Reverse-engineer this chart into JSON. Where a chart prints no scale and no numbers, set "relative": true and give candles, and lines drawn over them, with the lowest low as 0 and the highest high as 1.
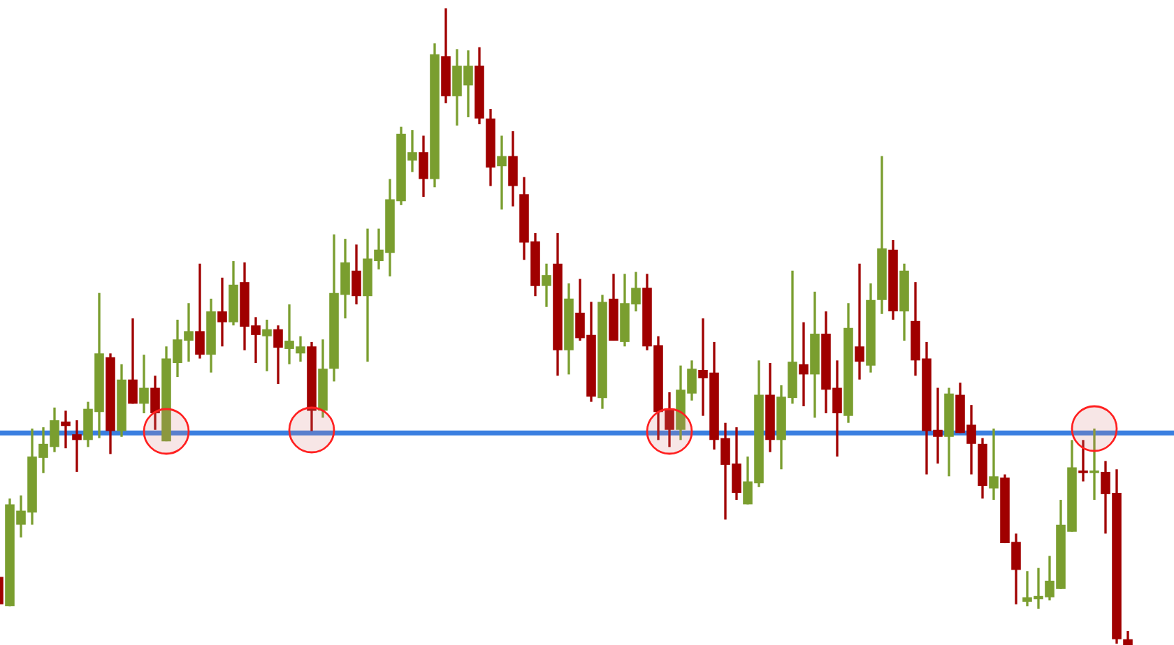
{
  "chart_data": {
    "type": "candlestick",
    "relative": true,
    "categories": [
      null,
      null,
      null,
      null,
      null,
      null,
      null,
      null,
      null,
      null,
      null,
      null,
      null,
      null,
      null,
      null,
      null,
      null,
      null,
      null,
      null,
      null,
      null,
      null,
      null,
      null,
      null,
      null,
      null,
      null,
      null,
      null,
      null,
      null,
      null,
      null,
      null,
      null,
      null,
      null,
      null,
      null,
      null,
      null,
      null,
      null,
      null,
      null,
      null,
      null,
      null,
      null,
      null,
      null,
      null,
      null,
      null,
      null,
      null,
      null,
      null,
      null,
      null,
      null,
      null,
      null,
      null,
      null,
      null,
      null,
      null,
      null,
      null,
      null,
      null,
      null,
      null,
      null,
      null,
      null,
      null,
      null,
      null,
      null,
      null,
      null,
      null,
      null,
      null,
      null,
      null,
      null,
      null,
      null,
      null,
      null,
      null,
      null,
      null,
      null,
      null,
      null
    ],
    "series": [
      {
        "colors": [
          "#a00000",
          "#7a9e2f",
          "#7a9e2f",
          "#7a9e2f",
          "#7a9e2f",
          "#7a9e2f",
          "#a00000",
          "#a00000",
          "#7a9e2f",
          "#7a9e2f",
          "#a00000",
          "#7a9e2f",
          "#a00000",
          "#7a9e2f",
          "#a00000",
          "#7a9e2f",
          "#7a9e2f",
          "#7a9e2f",
          "#a00000",
          "#7a9e2f",
          "#a00000",
          "#7a9e2f",
          "#a00000",
          "#a00000",
          "#7a9e2f",
          "#a00000",
          "#7a9e2f",
          "#7a9e2f",
          "#a00000",
          "#7a9e2f",
          "#7a9e2f",
          "#7a9e2f",
          "#a00000",
          "#7a9e2f",
          "#7a9e2f",
          "#7a9e2f",
          "#7a9e2f",
          "#7a9e2f",
          "#a00000",
          "#7a9e2f",
          "#a00000",
          "#7a9e2f",
          "#7a9e2f",
          "#a00000",
          "#a00000",
          "#7a9e2f",
          "#a00000",
          "#a00000",
          "#a00000",
          "#7a9e2f",
          "#a00000",
          "#7a9e2f",
          "#a00000",
          "#a00000",
          "#7a9e2f",
          "#a00000",
          "#7a9e2f",
          "#7a9e2f",
          "#a00000",
          "#a00000",
          "#a00000",
          "#7a9e2f",
          "#7a9e2f",
          "#a00000",
          "#a00000",
          "#a00000",
          "#a00000",
          "#7a9e2f",
          "#7a9e2f",
          "#a00000",
          "#7a9e2f",
          "#7a9e2f",
          "#a00000",
          "#7a9e2f",
          "#a00000",
          "#a00000",
          "#7a9e2f",
          "#a00000",
          "#7a9e2f",
          "#7a9e2f",
          "#a00000",
          "#7a9e2f",
          "#a00000",
          "#a00000",
          "#a00000",
          "#7a9e2f",
          "#a00000",
          "#a00000",
          "#a00000",
          "#7a9e2f",
          "#a00000",
          "#a00000",
          "#7a9e2f",
          "#7a9e2f",
          "#7a9e2f",
          "#7a9e2f",
          "#7a9e2f",
          "#a00000",
          "#7a9e2f",
          "#a00000",
          "#a00000",
          "#a00000"
        ],
        "ohlc": [
          [
            0.107,
            0.107,
            0.064,
            0.064
          ],
          [
            0.061,
            0.23,
            0.061,
            0.221
          ],
          [
            0.189,
            0.235,
            0.169,
            0.211
          ],
          [
            0.208,
            0.34,
            0.189,
            0.296
          ],
          [
            0.294,
            0.342,
            0.27,
            0.316
          ],
          [
            0.311,
            0.373,
            0.303,
            0.353
          ],
          [
            0.351,
            0.368,
            0.309,
            0.344
          ],
          [
            0.331,
            0.353,
            0.272,
            0.322
          ],
          [
            0.322,
            0.382,
            0.311,
            0.371
          ],
          [
            0.366,
            0.553,
            0.325,
            0.458
          ],
          [
            0.452,
            0.458,
            0.3,
            0.336
          ],
          [
            0.336,
            0.441,
            0.327,
            0.417
          ],
          [
            0.417,
            0.513,
            0.379,
            0.379
          ],
          [
            0.379,
            0.456,
            0.364,
            0.404
          ],
          [
            0.404,
            0.423,
            0.338,
            0.364
          ],
          [
            0.32,
            0.469,
            0.32,
            0.45
          ],
          [
            0.443,
            0.511,
            0.421,
            0.48
          ],
          [
            0.478,
            0.537,
            0.445,
            0.493
          ],
          [
            0.493,
            0.599,
            0.45,
            0.456
          ],
          [
            0.456,
            0.544,
            0.428,
            0.524
          ],
          [
            0.524,
            0.577,
            0.469,
            0.507
          ],
          [
            0.507,
            0.603,
            0.502,
            0.566
          ],
          [
            0.57,
            0.601,
            0.463,
            0.5
          ],
          [
            0.502,
            0.515,
            0.443,
            0.487
          ],
          [
            0.485,
            0.511,
            0.43,
            0.496
          ],
          [
            0.496,
            0.502,
            0.41,
            0.467
          ],
          [
            0.465,
            0.535,
            0.441,
            0.478
          ],
          [
            0.458,
            0.485,
            0.445,
            0.469
          ],
          [
            0.469,
            0.476,
            0.336,
            0.368
          ],
          [
            0.368,
            0.48,
            0.357,
            0.434
          ],
          [
            0.434,
            0.645,
            0.414,
            0.553
          ],
          [
            0.55,
            0.638,
            0.513,
            0.601
          ],
          [
            0.588,
            0.629,
            0.535,
            0.548
          ],
          [
            0.548,
            0.654,
            0.445,
            0.607
          ],
          [
            0.603,
            0.654,
            0.59,
            0.621
          ],
          [
            0.616,
            0.732,
            0.579,
            0.7
          ],
          [
            0.697,
            0.814,
            0.691,
            0.803
          ],
          [
            0.761,
            0.809,
            0.743,
            0.774
          ],
          [
            0.774,
            0.8,
            0.704,
            0.732
          ],
          [
            0.732,
            0.945,
            0.719,
            0.928
          ],
          [
            0.925,
            1,
            0.851,
            0.862
          ],
          [
            0.862,
            0.936,
            0.816,
            0.91
          ],
          [
            0.879,
            0.934,
            0.829,
            0.91
          ],
          [
            0.91,
            0.939,
            0.818,
            0.827
          ],
          [
            0.827,
            0.842,
            0.721,
            0.75
          ],
          [
            0.752,
            0.8,
            0.684,
            0.768
          ],
          [
            0.768,
            0.807,
            0.689,
            0.721
          ],
          [
            0.708,
            0.735,
            0.605,
            0.632
          ],
          [
            0.634,
            0.647,
            0.548,
            0.564
          ],
          [
            0.564,
            0.599,
            0.531,
            0.581
          ],
          [
            0.599,
            0.647,
            0.423,
            0.463
          ],
          [
            0.463,
            0.568,
            0.425,
            0.544
          ],
          [
            0.522,
            0.575,
            0.478,
            0.482
          ],
          [
            0.487,
            0.539,
            0.382,
            0.39
          ],
          [
            0.388,
            0.55,
            0.371,
            0.539
          ],
          [
            0.544,
            0.583,
            0.478,
            0.478
          ],
          [
            0.476,
            0.583,
            0.469,
            0.537
          ],
          [
            0.535,
            0.586,
            0.524,
            0.561
          ],
          [
            0.561,
            0.583,
            0.463,
            0.469
          ],
          [
            0.471,
            0.485,
            0.322,
            0.366
          ],
          [
            0.371,
            0.397,
            0.311,
            0.338
          ],
          [
            0.338,
            0.439,
            0.322,
            0.401
          ],
          [
            0.395,
            0.447,
            0.384,
            0.434
          ],
          [
            0.432,
            0.513,
            0.36,
            0.419
          ],
          [
            0.428,
            0.476,
            0.307,
            0.322
          ],
          [
            0.325,
            0.349,
            0.197,
            0.283
          ],
          [
            0.285,
            0.342,
            0.228,
            0.239
          ],
          [
            0.221,
            0.296,
            0.221,
            0.257
          ],
          [
            0.254,
            0.447,
            0.248,
            0.393
          ],
          [
            0.393,
            0.443,
            0.303,
            0.322
          ],
          [
            0.322,
            0.408,
            0.276,
            0.39
          ],
          [
            0.388,
            0.588,
            0.379,
            0.445
          ],
          [
            0.441,
            0.507,
            0.375,
            0.425
          ],
          [
            0.425,
            0.555,
            0.357,
            0.489
          ],
          [
            0.489,
            0.524,
            0.364,
            0.401
          ],
          [
            0.404,
            0.447,
            0.296,
            0.364
          ],
          [
            0.36,
            0.537,
            0.349,
            0.498
          ],
          [
            0.469,
            0.599,
            0.417,
            0.445
          ],
          [
            0.439,
            0.568,
            0.428,
            0.542
          ],
          [
            0.542,
            0.768,
            0.52,
            0.623
          ],
          [
            0.621,
            0.636,
            0.511,
            0.524
          ],
          [
            0.524,
            0.599,
            0.478,
            0.588
          ],
          [
            0.509,
            0.57,
            0.423,
            0.447
          ],
          [
            0.45,
            0.476,
            0.268,
            0.336
          ],
          [
            0.338,
            0.404,
            0.285,
            0.327
          ],
          [
            0.327,
            0.404,
            0.265,
            0.395
          ],
          [
            0.393,
            0.412,
            0.333,
            0.333
          ],
          [
            0.346,
            0.377,
            0.268,
            0.316
          ],
          [
            0.316,
            0.325,
            0.23,
            0.25
          ],
          [
            0.246,
            0.34,
            0.228,
            0.265
          ],
          [
            0.263,
            0.268,
            0.16,
            0.16
          ],
          [
            0.162,
            0.175,
            0.064,
            0.118
          ],
          [
            0.068,
            0.116,
            0.061,
            0.075
          ],
          [
            0.072,
            0.121,
            0.057,
            0.077
          ],
          [
            0.075,
            0.14,
            0.07,
            0.101
          ],
          [
            0.088,
            0.228,
            0.088,
            0.189
          ],
          [
            0.178,
            0.322,
            0.178,
            0.279
          ],
          [
            0.274,
            0.322,
            0.257,
            0.27
          ],
          [
            0.27,
            0.34,
            0.228,
            0.274
          ],
          [
            0.272,
            0.289,
            0.175,
            0.237
          ],
          [
            0.239,
            0.276,
            0.002,
            0.009
          ],
          [
            0.009,
            0.022,
            0,
            0
          ]
        ]
      }
    ],
    "ref_lines": [
      {
        "axis": "y",
        "value": 0.333,
        "color": "#3a7fe0",
        "line_style": "solid"
      }
    ]
  }
}
